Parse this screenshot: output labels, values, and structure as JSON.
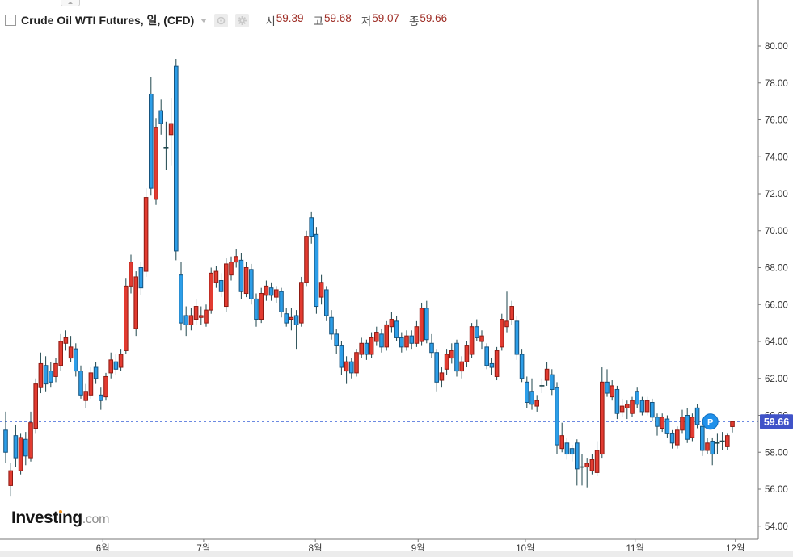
{
  "header": {
    "title": "Crude Oil WTI Futures, 일, (CFD)",
    "ohlc": [
      {
        "label": "시",
        "value": "59.39"
      },
      {
        "label": "고",
        "value": "59.68"
      },
      {
        "label": "저",
        "value": "59.07"
      },
      {
        "label": "종",
        "value": "59.66"
      }
    ]
  },
  "logo": {
    "main": "Investing",
    "suffix": ".com"
  },
  "chart_data": {
    "type": "candlestick",
    "title": "Crude Oil WTI Futures, 일, (CFD)",
    "y_axis": {
      "min": 54,
      "max": 80,
      "step": 2,
      "tick_format": "0.00"
    },
    "x_axis": {
      "labels": [
        {
          "label": "6월",
          "index": 19.4
        },
        {
          "label": "7월",
          "index": 39.5
        },
        {
          "label": "8월",
          "index": 61.8
        },
        {
          "label": "9월",
          "index": 82.3
        },
        {
          "label": "10월",
          "index": 103.7
        },
        {
          "label": "11월",
          "index": 125.6
        },
        {
          "label": "12월",
          "index": 145.6
        }
      ]
    },
    "price_line": {
      "price": 59.66,
      "label": "59.66"
    },
    "marker": {
      "label": "P",
      "index": 140.6,
      "price": 59.66
    },
    "colors": {
      "up": "#e23b31",
      "up_border": "#8f1a12",
      "down": "#2d9ee8",
      "down_border": "#16547f",
      "wick": "#1e464d",
      "price_line": "#3c64d9",
      "badge_bg": "#4053c8",
      "badge_text": "#ffffff",
      "marker_bg": "#2090ea",
      "marker_border": "#0f6fc0",
      "axis": "#777777",
      "axis_text": "#333333"
    },
    "candles": [
      [
        59.2,
        60.2,
        57.4,
        58.0
      ],
      [
        56.2,
        57.4,
        55.6,
        57.0
      ],
      [
        58.9,
        59.5,
        57.2,
        57.7
      ],
      [
        57.0,
        59.0,
        56.8,
        58.8
      ],
      [
        58.7,
        59.1,
        57.3,
        57.8
      ],
      [
        57.7,
        60.2,
        57.5,
        59.6
      ],
      [
        59.3,
        62.0,
        59.0,
        61.7
      ],
      [
        61.5,
        63.4,
        61.2,
        62.8
      ],
      [
        62.7,
        63.2,
        61.3,
        61.7
      ],
      [
        62.4,
        62.9,
        61.5,
        61.8
      ],
      [
        62.1,
        63.1,
        61.8,
        62.8
      ],
      [
        62.7,
        64.4,
        62.4,
        64.0
      ],
      [
        63.9,
        64.6,
        63.5,
        64.2
      ],
      [
        63.1,
        64.3,
        62.9,
        63.7
      ],
      [
        63.6,
        63.9,
        62.1,
        62.4
      ],
      [
        62.4,
        62.7,
        60.9,
        61.1
      ],
      [
        60.8,
        61.7,
        60.4,
        61.3
      ],
      [
        61.1,
        62.6,
        60.9,
        62.3
      ],
      [
        62.6,
        62.9,
        61.7,
        62.0
      ],
      [
        61.1,
        61.5,
        60.3,
        60.8
      ],
      [
        61.0,
        62.3,
        60.8,
        62.1
      ],
      [
        62.3,
        63.4,
        62.0,
        63.0
      ],
      [
        62.9,
        63.3,
        62.2,
        62.5
      ],
      [
        62.6,
        63.6,
        62.4,
        63.3
      ],
      [
        63.5,
        67.4,
        63.3,
        67.0
      ],
      [
        67.0,
        68.7,
        66.6,
        68.3
      ],
      [
        64.7,
        67.8,
        64.3,
        67.5
      ],
      [
        68.0,
        68.3,
        66.5,
        66.9
      ],
      [
        67.8,
        72.3,
        67.5,
        71.8
      ],
      [
        77.4,
        78.3,
        71.9,
        72.3
      ],
      [
        71.7,
        76.1,
        71.4,
        75.6
      ],
      [
        76.5,
        77.1,
        75.2,
        75.8
      ],
      [
        74.5,
        75.9,
        73.3,
        74.5
      ],
      [
        75.2,
        77.2,
        73.5,
        75.8
      ],
      [
        78.9,
        79.3,
        68.4,
        68.9
      ],
      [
        67.6,
        68.3,
        64.6,
        65.0
      ],
      [
        65.4,
        65.9,
        64.3,
        64.9
      ],
      [
        64.9,
        65.8,
        64.6,
        65.4
      ],
      [
        65.2,
        66.3,
        64.9,
        65.9
      ],
      [
        65.3,
        65.9,
        64.9,
        65.4
      ],
      [
        65.0,
        66.0,
        64.8,
        65.7
      ],
      [
        65.7,
        68.0,
        65.5,
        67.7
      ],
      [
        67.2,
        68.1,
        66.9,
        67.8
      ],
      [
        67.3,
        67.7,
        66.4,
        66.7
      ],
      [
        65.9,
        68.5,
        65.6,
        68.2
      ],
      [
        67.6,
        68.6,
        67.3,
        68.3
      ],
      [
        68.3,
        69.0,
        68.0,
        68.6
      ],
      [
        68.4,
        68.8,
        66.3,
        66.7
      ],
      [
        66.6,
        68.3,
        66.4,
        68.0
      ],
      [
        67.9,
        68.2,
        66.0,
        66.3
      ],
      [
        66.3,
        66.6,
        64.8,
        65.2
      ],
      [
        65.2,
        66.9,
        65.0,
        66.6
      ],
      [
        66.5,
        67.3,
        66.2,
        67.0
      ],
      [
        66.9,
        67.2,
        66.2,
        66.5
      ],
      [
        66.4,
        67.0,
        66.1,
        66.8
      ],
      [
        66.7,
        66.9,
        65.3,
        65.6
      ],
      [
        65.5,
        65.8,
        64.8,
        65.0
      ],
      [
        65.2,
        65.8,
        64.6,
        65.3
      ],
      [
        65.4,
        65.7,
        63.6,
        64.9
      ],
      [
        65.0,
        67.5,
        64.8,
        67.2
      ],
      [
        67.2,
        70.0,
        67.0,
        69.7
      ],
      [
        70.7,
        71.0,
        69.3,
        69.7
      ],
      [
        69.8,
        70.2,
        65.5,
        65.9
      ],
      [
        66.4,
        67.6,
        66.0,
        67.2
      ],
      [
        66.8,
        67.0,
        65.1,
        65.4
      ],
      [
        65.3,
        65.7,
        64.1,
        64.4
      ],
      [
        64.4,
        64.7,
        63.3,
        63.8
      ],
      [
        63.8,
        64.0,
        62.2,
        62.6
      ],
      [
        62.4,
        63.2,
        61.7,
        62.9
      ],
      [
        62.9,
        63.1,
        62.0,
        62.3
      ],
      [
        62.3,
        63.6,
        62.1,
        63.4
      ],
      [
        63.3,
        64.2,
        63.1,
        63.9
      ],
      [
        63.9,
        64.1,
        63.0,
        63.3
      ],
      [
        63.3,
        64.5,
        63.1,
        64.2
      ],
      [
        64.0,
        64.8,
        63.8,
        64.5
      ],
      [
        64.4,
        64.7,
        63.4,
        63.7
      ],
      [
        63.7,
        65.1,
        63.5,
        64.9
      ],
      [
        64.8,
        65.6,
        64.5,
        65.2
      ],
      [
        65.1,
        65.4,
        64.0,
        64.2
      ],
      [
        64.2,
        64.5,
        63.4,
        63.7
      ],
      [
        63.7,
        64.6,
        63.5,
        64.3
      ],
      [
        64.3,
        64.6,
        63.6,
        63.9
      ],
      [
        63.9,
        65.1,
        63.7,
        64.8
      ],
      [
        64.0,
        66.1,
        63.8,
        65.8
      ],
      [
        65.8,
        66.2,
        63.9,
        64.1
      ],
      [
        63.9,
        64.4,
        63.1,
        63.4
      ],
      [
        63.4,
        63.6,
        61.3,
        61.8
      ],
      [
        61.9,
        62.6,
        61.5,
        62.3
      ],
      [
        62.5,
        63.6,
        62.2,
        63.3
      ],
      [
        63.1,
        63.9,
        62.8,
        63.5
      ],
      [
        63.9,
        64.1,
        62.1,
        62.4
      ],
      [
        62.4,
        63.2,
        62.0,
        62.9
      ],
      [
        62.9,
        64.0,
        62.6,
        63.8
      ],
      [
        63.3,
        65.0,
        63.1,
        64.8
      ],
      [
        64.8,
        65.2,
        64.0,
        64.2
      ],
      [
        64.0,
        64.6,
        63.6,
        64.3
      ],
      [
        63.7,
        63.9,
        62.5,
        62.7
      ],
      [
        62.8,
        63.1,
        62.2,
        62.6
      ],
      [
        62.1,
        63.7,
        61.9,
        63.5
      ],
      [
        63.7,
        65.5,
        63.5,
        65.2
      ],
      [
        64.8,
        66.7,
        64.5,
        65.1
      ],
      [
        65.2,
        66.2,
        64.9,
        65.9
      ],
      [
        65.1,
        65.4,
        63.0,
        63.3
      ],
      [
        63.3,
        63.6,
        61.8,
        62.0
      ],
      [
        61.8,
        62.1,
        60.4,
        60.7
      ],
      [
        61.3,
        62.0,
        60.3,
        60.6
      ],
      [
        60.5,
        61.1,
        60.2,
        60.8
      ],
      [
        61.6,
        62.0,
        61.2,
        61.6
      ],
      [
        61.9,
        62.9,
        61.6,
        62.5
      ],
      [
        62.2,
        62.5,
        61.1,
        61.4
      ],
      [
        61.5,
        61.8,
        57.9,
        58.4
      ],
      [
        58.2,
        59.6,
        58.0,
        58.9
      ],
      [
        58.5,
        58.8,
        57.6,
        57.9
      ],
      [
        58.2,
        58.4,
        57.5,
        57.9
      ],
      [
        58.5,
        58.7,
        56.2,
        57.1
      ],
      [
        57.2,
        57.9,
        56.2,
        57.2
      ],
      [
        57.2,
        57.7,
        56.1,
        57.4
      ],
      [
        57.0,
        57.9,
        56.8,
        57.6
      ],
      [
        56.9,
        58.6,
        56.7,
        58.1
      ],
      [
        57.9,
        62.6,
        57.7,
        61.8
      ],
      [
        61.8,
        62.5,
        61.0,
        61.2
      ],
      [
        61.0,
        61.9,
        60.8,
        61.6
      ],
      [
        61.4,
        61.6,
        59.8,
        60.1
      ],
      [
        60.2,
        60.9,
        59.9,
        60.5
      ],
      [
        60.4,
        60.8,
        59.8,
        60.6
      ],
      [
        60.1,
        61.0,
        59.9,
        60.8
      ],
      [
        61.3,
        61.5,
        60.4,
        60.6
      ],
      [
        60.8,
        61.0,
        60.0,
        60.2
      ],
      [
        60.2,
        61.0,
        60.0,
        60.8
      ],
      [
        60.7,
        60.9,
        59.7,
        59.9
      ],
      [
        59.9,
        60.1,
        58.9,
        59.4
      ],
      [
        59.3,
        60.1,
        59.1,
        59.9
      ],
      [
        59.8,
        60.0,
        58.8,
        59.0
      ],
      [
        59.0,
        59.2,
        58.2,
        58.5
      ],
      [
        58.4,
        59.4,
        58.2,
        59.2
      ],
      [
        59.2,
        60.3,
        59.0,
        59.9
      ],
      [
        60.0,
        60.4,
        58.5,
        58.7
      ],
      [
        58.8,
        60.1,
        58.6,
        59.9
      ],
      [
        60.4,
        60.6,
        59.3,
        59.5
      ],
      [
        59.4,
        59.6,
        57.8,
        58.1
      ],
      [
        58.1,
        58.8,
        57.9,
        58.5
      ],
      [
        58.6,
        58.8,
        57.3,
        57.9
      ],
      [
        58.5,
        59.0,
        57.9,
        58.5
      ],
      [
        58.6,
        59.1,
        58.1,
        58.6
      ],
      [
        58.3,
        59.0,
        58.1,
        58.9
      ],
      [
        59.39,
        59.68,
        59.07,
        59.66
      ]
    ]
  }
}
